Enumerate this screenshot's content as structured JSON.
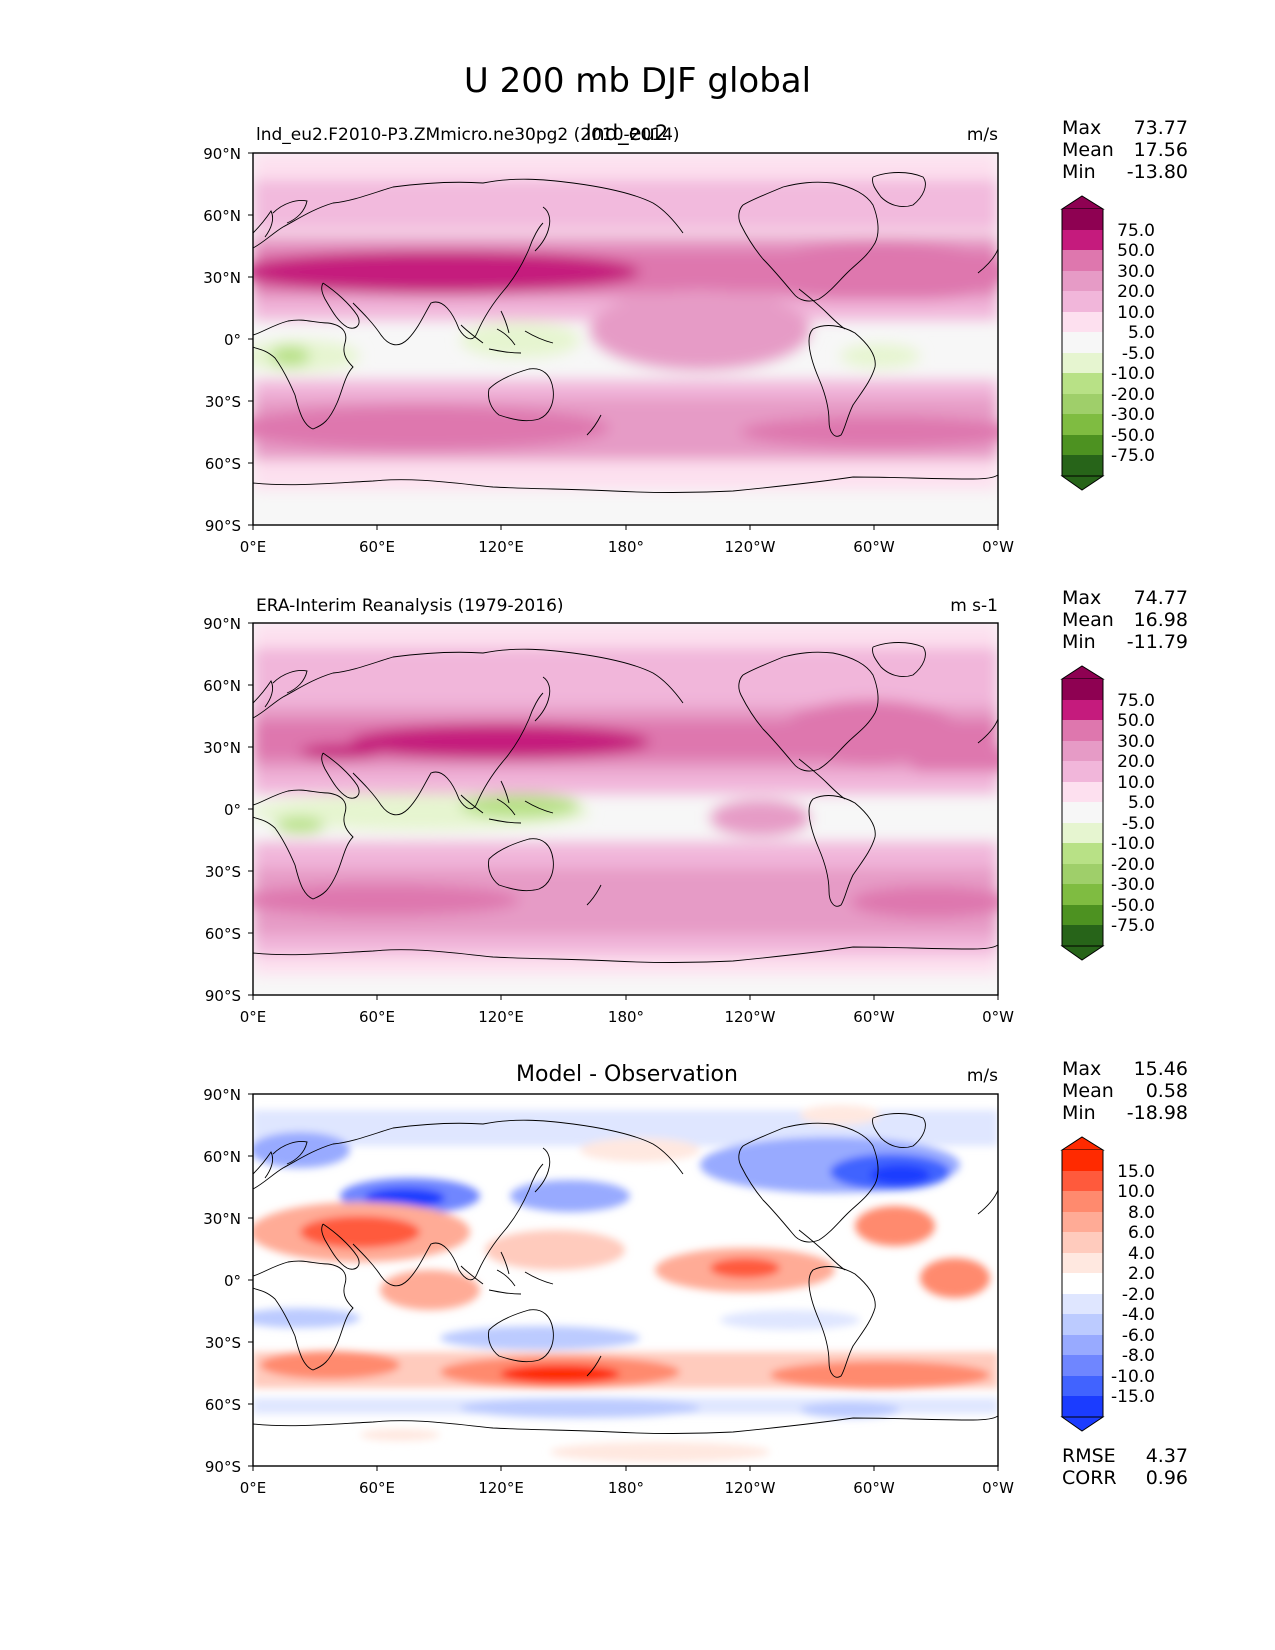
{
  "figure": {
    "title": "U 200 mb DJF global"
  },
  "chart_data": [
    {
      "type": "heatmap",
      "subtitle_left": "lnd_eu2.F2010-P3.ZMmicro.ne30pg2 (2010-2014)",
      "subtitle_center": "lnd_eu2",
      "units": "m/s",
      "xticks": [
        "0°E",
        "60°E",
        "120°E",
        "180°",
        "120°W",
        "60°W",
        "0°W"
      ],
      "yticks": [
        "90°N",
        "60°N",
        "30°N",
        "0°",
        "30°S",
        "60°S",
        "90°S"
      ],
      "xlim": [
        0,
        360
      ],
      "ylim": [
        -90,
        90
      ],
      "stats": [
        {
          "label": "Max",
          "value": "73.77"
        },
        {
          "label": "Mean",
          "value": "17.56"
        },
        {
          "label": "Min",
          "value": "-13.80"
        }
      ],
      "colorbar_levels": [
        "75.0",
        "50.0",
        "30.0",
        "20.0",
        "10.0",
        "5.0",
        "-5.0",
        "-10.0",
        "-20.0",
        "-30.0",
        "-50.0",
        "-75.0"
      ],
      "colorbar_colors": [
        "#8e0152",
        "#c51b7d",
        "#de77ae",
        "#e69bc6",
        "#f1b6da",
        "#fde0ef",
        "#f7f7f7",
        "#e6f5d0",
        "#b8e186",
        "#7fbc41",
        "#4d9221",
        "#276419"
      ],
      "features": {
        "jets": [
          {
            "lat": 30,
            "lon_start": 0,
            "lon_end": 360,
            "value": 30
          },
          {
            "lat": 30,
            "lon_start": 60,
            "lon_end": 170,
            "value": 50
          },
          {
            "lat": 32,
            "lon_start": 250,
            "lon_end": 330,
            "value": 30
          },
          {
            "lat": -45,
            "lon_start": 0,
            "lon_end": 360,
            "value": 30
          },
          {
            "lat": 35,
            "lon_start": 80,
            "lon_end": 150,
            "value": 50
          }
        ]
      }
    },
    {
      "type": "heatmap",
      "subtitle_left": "ERA-Interim Reanalysis (1979-2016)",
      "units": "m s-1",
      "xticks": [
        "0°E",
        "60°E",
        "120°E",
        "180°",
        "120°W",
        "60°W",
        "0°W"
      ],
      "yticks": [
        "90°N",
        "60°N",
        "30°N",
        "0°",
        "30°S",
        "60°S",
        "90°S"
      ],
      "xlim": [
        0,
        360
      ],
      "ylim": [
        -90,
        90
      ],
      "stats": [
        {
          "label": "Max",
          "value": "74.77"
        },
        {
          "label": "Mean",
          "value": "16.98"
        },
        {
          "label": "Min",
          "value": "-11.79"
        }
      ],
      "colorbar_levels": [
        "75.0",
        "50.0",
        "30.0",
        "20.0",
        "10.0",
        "5.0",
        "-5.0",
        "-10.0",
        "-20.0",
        "-30.0",
        "-50.0",
        "-75.0"
      ],
      "colorbar_colors": [
        "#8e0152",
        "#c51b7d",
        "#de77ae",
        "#e69bc6",
        "#f1b6da",
        "#fde0ef",
        "#f7f7f7",
        "#e6f5d0",
        "#b8e186",
        "#7fbc41",
        "#4d9221",
        "#276419"
      ]
    },
    {
      "type": "heatmap",
      "subtitle_center": "Model - Observation",
      "units": "m/s",
      "xticks": [
        "0°E",
        "60°E",
        "120°E",
        "180°",
        "120°W",
        "60°W",
        "0°W"
      ],
      "yticks": [
        "90°N",
        "60°N",
        "30°N",
        "0°",
        "30°S",
        "60°S",
        "90°S"
      ],
      "xlim": [
        0,
        360
      ],
      "ylim": [
        -90,
        90
      ],
      "stats": [
        {
          "label": "Max",
          "value": "15.46"
        },
        {
          "label": "Mean",
          "value": "0.58"
        },
        {
          "label": "Min",
          "value": "-18.98"
        }
      ],
      "extra_stats": [
        {
          "label": "RMSE",
          "value": "4.37"
        },
        {
          "label": "CORR",
          "value": "0.96"
        }
      ],
      "colorbar_levels": [
        "15.0",
        "10.0",
        "8.0",
        "6.0",
        "4.0",
        "2.0",
        "-2.0",
        "-4.0",
        "-6.0",
        "-8.0",
        "-10.0",
        "-15.0"
      ],
      "colorbar_colors": [
        "#ff2a00",
        "#ff5a3c",
        "#ff8a6e",
        "#ffab96",
        "#ffcbbd",
        "#ffe8e0",
        "#ffffff",
        "#dfe6ff",
        "#bccbff",
        "#98aaff",
        "#6f86ff",
        "#4163ff",
        "#1b3cff"
      ]
    }
  ]
}
